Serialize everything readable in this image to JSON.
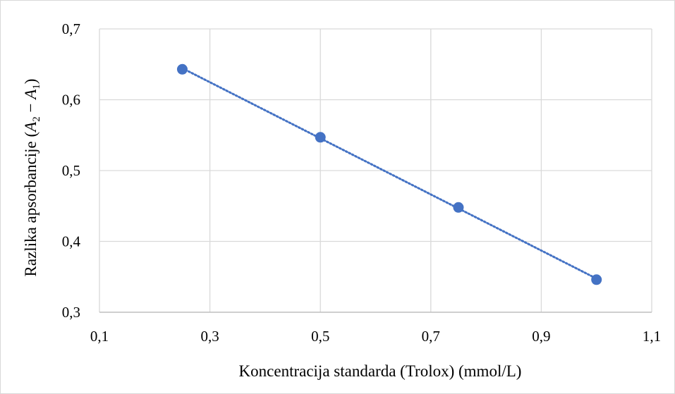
{
  "chart_data": {
    "type": "scatter",
    "title": "",
    "xlabel": "Koncentracija standarda (Trolox) (mmol/L)",
    "ylabel": {
      "prefix": "Razlika apsorbancije (",
      "a2": "A",
      "a2_sub": "2",
      "minus": " − ",
      "a1": "A",
      "a1_sub": "1",
      "suffix": ")"
    },
    "xlim": [
      0.1,
      1.1
    ],
    "ylim": [
      0.3,
      0.7
    ],
    "x_ticks": [
      0.1,
      0.3,
      0.5,
      0.7,
      0.9,
      1.1
    ],
    "x_tick_labels": [
      "0,1",
      "0,3",
      "0,5",
      "0,7",
      "0,9",
      "1,1"
    ],
    "y_ticks": [
      0.3,
      0.4,
      0.5,
      0.6,
      0.7
    ],
    "y_tick_labels": [
      "0,3",
      "0,4",
      "0,5",
      "0,6",
      "0,7"
    ],
    "grid": true,
    "legend": "none",
    "series": [
      {
        "x": [
          0.25,
          0.5,
          0.75,
          1.0
        ],
        "y": [
          0.643,
          0.547,
          0.448,
          0.346
        ],
        "color": "#4472c4",
        "trendline": "linear (dotted)"
      }
    ]
  }
}
